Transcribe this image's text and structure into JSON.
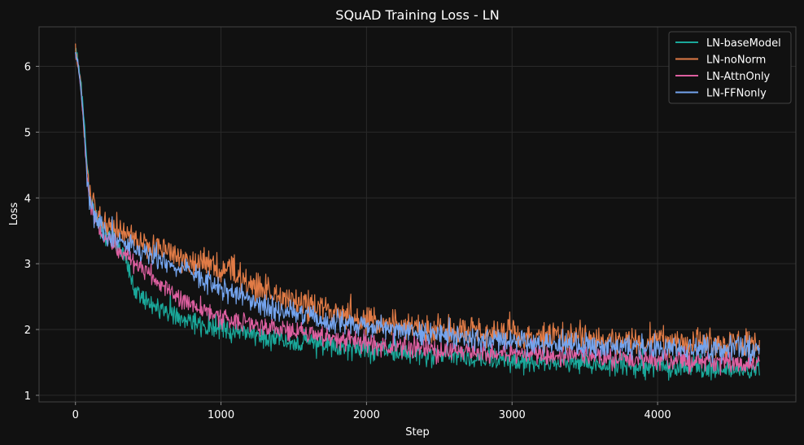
{
  "chart_data": {
    "type": "line",
    "title": "SQuAD Training Loss - LN",
    "xlabel": "Step",
    "ylabel": "Loss",
    "xlim": [
      -250,
      4950
    ],
    "ylim": [
      0.9,
      6.6
    ],
    "xticks": [
      0,
      1000,
      2000,
      3000,
      4000
    ],
    "yticks": [
      1,
      2,
      3,
      4,
      5,
      6
    ],
    "grid": true,
    "legend_position": "top-right",
    "background": "#111111",
    "series": [
      {
        "name": "LN-baseModel",
        "color": "#1aa89a",
        "x": [
          0,
          20,
          40,
          60,
          80,
          100,
          150,
          200,
          300,
          350,
          400,
          500,
          600,
          700,
          800,
          1000,
          1200,
          1400,
          1600,
          1800,
          2000,
          2250,
          2500,
          2750,
          3000,
          3250,
          3500,
          3750,
          4000,
          4250,
          4500,
          4700
        ],
        "values": [
          6.3,
          6.05,
          5.7,
          5.2,
          4.5,
          4.0,
          3.7,
          3.45,
          3.3,
          3.1,
          2.6,
          2.4,
          2.3,
          2.2,
          2.1,
          2.0,
          1.92,
          1.85,
          1.8,
          1.75,
          1.7,
          1.65,
          1.6,
          1.57,
          1.53,
          1.5,
          1.48,
          1.46,
          1.44,
          1.42,
          1.41,
          1.4
        ],
        "noise": 0.14
      },
      {
        "name": "LN-noNorm",
        "color": "#e07b46",
        "x": [
          0,
          20,
          40,
          60,
          80,
          100,
          150,
          200,
          300,
          400,
          500,
          600,
          700,
          800,
          900,
          1000,
          1100,
          1200,
          1400,
          1600,
          1800,
          2000,
          2250,
          2500,
          2750,
          3000,
          3250,
          3500,
          3750,
          4000,
          4250,
          4500,
          4700
        ],
        "values": [
          6.25,
          6.0,
          5.6,
          5.0,
          4.4,
          4.1,
          3.8,
          3.6,
          3.5,
          3.4,
          3.3,
          3.25,
          3.15,
          3.05,
          3.0,
          2.95,
          2.85,
          2.7,
          2.5,
          2.35,
          2.25,
          2.15,
          2.05,
          2.0,
          1.95,
          1.9,
          1.88,
          1.86,
          1.84,
          1.82,
          1.8,
          1.78,
          1.76
        ],
        "noise": 0.18
      },
      {
        "name": "LN-AttnOnly",
        "color": "#dd5fa0",
        "x": [
          0,
          20,
          40,
          60,
          80,
          100,
          150,
          200,
          300,
          400,
          500,
          600,
          700,
          800,
          1000,
          1200,
          1400,
          1600,
          1800,
          2000,
          2250,
          2500,
          2750,
          3000,
          3250,
          3500,
          3750,
          4000,
          4250,
          4500,
          4700
        ],
        "values": [
          6.2,
          6.0,
          5.6,
          5.0,
          4.3,
          3.9,
          3.55,
          3.4,
          3.2,
          3.05,
          2.85,
          2.65,
          2.5,
          2.35,
          2.2,
          2.1,
          2.0,
          1.92,
          1.85,
          1.8,
          1.75,
          1.7,
          1.66,
          1.63,
          1.6,
          1.58,
          1.56,
          1.54,
          1.52,
          1.5,
          1.49
        ],
        "noise": 0.13
      },
      {
        "name": "LN-FFNonly",
        "color": "#74a4ee",
        "x": [
          0,
          20,
          40,
          60,
          80,
          100,
          150,
          200,
          300,
          400,
          500,
          600,
          700,
          800,
          900,
          1000,
          1100,
          1200,
          1400,
          1600,
          1800,
          2000,
          2250,
          2500,
          2750,
          3000,
          3250,
          3500,
          3750,
          4000,
          4250,
          4500,
          4700
        ],
        "values": [
          6.2,
          6.0,
          5.6,
          5.0,
          4.3,
          3.95,
          3.65,
          3.45,
          3.35,
          3.25,
          3.15,
          3.05,
          2.95,
          2.85,
          2.75,
          2.65,
          2.55,
          2.45,
          2.3,
          2.2,
          2.1,
          2.05,
          1.98,
          1.9,
          1.85,
          1.8,
          1.77,
          1.75,
          1.73,
          1.72,
          1.71,
          1.7,
          1.7
        ],
        "noise": 0.15
      }
    ]
  }
}
